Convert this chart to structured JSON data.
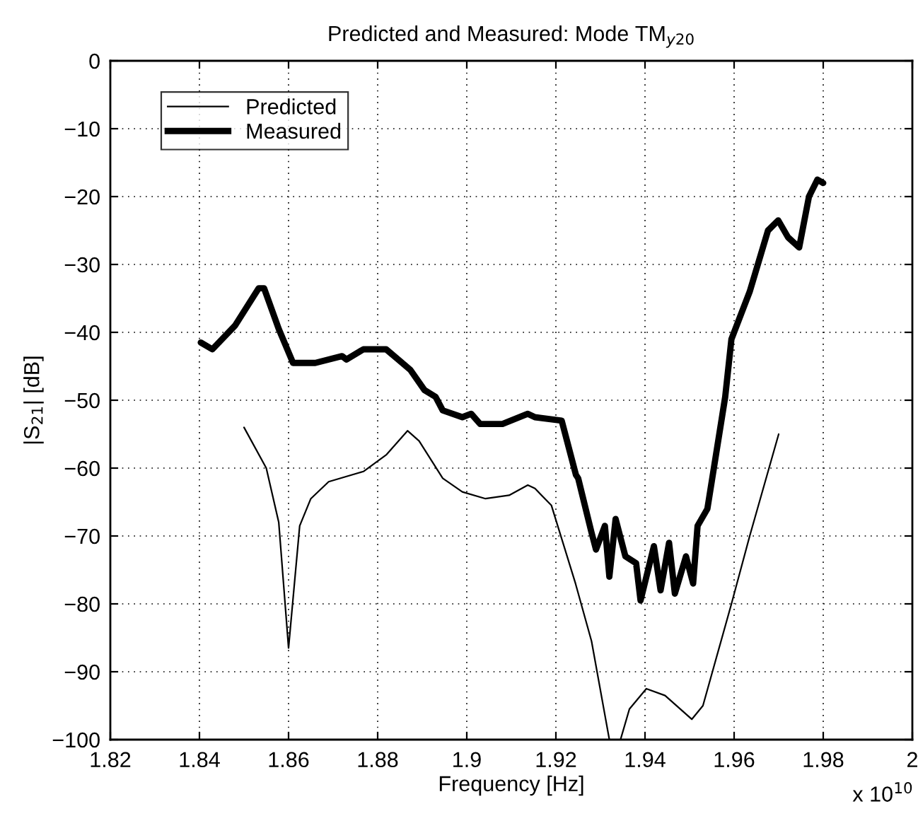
{
  "chart_data": {
    "type": "line",
    "title": "Predicted and Measured: Mode TM$_{y20}$",
    "xlabel": "Frequency [Hz]",
    "ylabel": "|S$_{21}$| [dB]",
    "annotations": [
      "x 10$^{10}$"
    ],
    "series": [
      {
        "name": "Predicted",
        "color": "#000000",
        "x": [
          1.85,
          1.855,
          1.8578,
          1.86,
          1.8625,
          1.865,
          1.869,
          1.8768,
          1.882,
          1.8867,
          1.8893,
          1.8946,
          1.899,
          1.9042,
          1.9095,
          1.9137,
          1.9153,
          1.919,
          1.9244,
          1.928,
          1.932,
          1.933,
          1.9345,
          1.9365,
          1.9403,
          1.9445,
          1.9505,
          1.953,
          1.9594,
          1.9635,
          1.97
        ],
        "values": [
          -54,
          -60,
          -68,
          -86.5,
          -68.5,
          -64.5,
          -62,
          -60.5,
          -58,
          -54.5,
          -56,
          -61.5,
          -63.5,
          -64.5,
          -64,
          -62.5,
          -63,
          -65.5,
          -77,
          -85.5,
          -100,
          null,
          -100,
          -95.5,
          -92.5,
          -93.5,
          -97,
          -95,
          -80,
          -70,
          -55
        ]
      },
      {
        "name": "Measured",
        "color": "#000000",
        "x": [
          1.8403,
          1.8429,
          1.848,
          1.8533,
          1.8545,
          1.8578,
          1.861,
          1.866,
          1.872,
          1.873,
          1.8768,
          1.8819,
          1.8873,
          1.8905,
          1.893,
          1.8946,
          1.899,
          1.901,
          1.903,
          1.906,
          1.908,
          1.9137,
          1.9153,
          1.9213,
          1.9245,
          1.925,
          1.928,
          1.929,
          1.931,
          1.932,
          1.9334,
          1.9356,
          1.938,
          1.939,
          1.942,
          1.9435,
          1.9454,
          1.9467,
          1.9492,
          1.9508,
          1.9518,
          1.954,
          1.958,
          1.9594,
          1.9635,
          1.9676,
          1.9699,
          1.9721,
          1.9746,
          1.9768,
          1.9787,
          1.98
        ],
        "values": [
          -41.5,
          -42.5,
          -39,
          -33.5,
          -33.5,
          -39.5,
          -44.5,
          -44.5,
          -43.5,
          -44,
          -42.5,
          -42.5,
          -45.5,
          -48.5,
          -49.5,
          -51.5,
          -52.5,
          -52,
          -53.5,
          -53.5,
          -53.5,
          -52,
          -52.5,
          -53,
          -61,
          -61.5,
          -69.5,
          -72,
          -68.5,
          -76,
          -67.5,
          -73,
          -74,
          -79.5,
          -71.5,
          -78,
          -71,
          -78.5,
          -73,
          -77,
          -68.5,
          -66,
          -49.5,
          -41,
          -34,
          -25,
          -23.5,
          -26,
          -27.5,
          -20,
          -17.5,
          -18
        ]
      }
    ],
    "xlim": [
      1.82,
      2.0
    ],
    "xticks": [
      1.82,
      1.84,
      1.86,
      1.88,
      1.9,
      1.92,
      1.94,
      1.96,
      1.98,
      {
        "value": 2.0,
        "label": "2"
      }
    ],
    "ylim": [
      -100,
      0
    ],
    "yticks": [
      -100,
      -90,
      -80,
      -70,
      -60,
      -50,
      -40,
      -30,
      -20,
      -10,
      0
    ],
    "grid": true,
    "legend": "top left",
    "line_style": "solid",
    "marker": "none"
  }
}
